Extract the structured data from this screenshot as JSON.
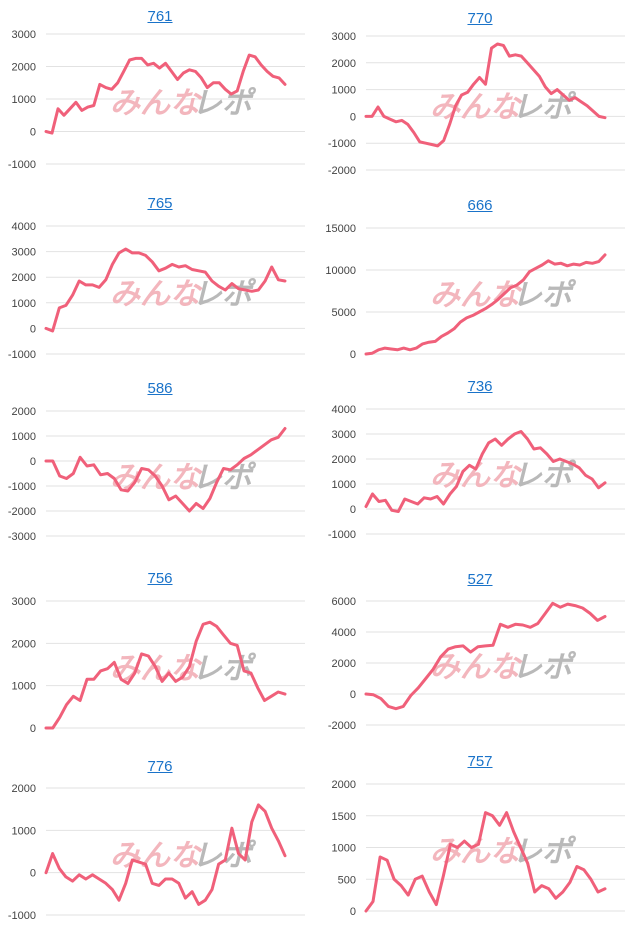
{
  "colors": {
    "line": "#f0607a",
    "title": "#1a73c9",
    "grid": "#e2e2e2",
    "tick": "#444444",
    "watermark_red": "#f3b6bd",
    "watermark_gray": "#b9b9b9"
  },
  "watermark": {
    "left": "みんな",
    "right": "レポ"
  },
  "chart_data": [
    {
      "type": "line",
      "title": "761",
      "yticks": [
        3000,
        2000,
        1000,
        0,
        -1000
      ],
      "ylim": [
        -1000,
        3000
      ],
      "values": [
        0,
        -50,
        700,
        500,
        700,
        900,
        650,
        750,
        800,
        1450,
        1350,
        1300,
        1500,
        1850,
        2200,
        2250,
        2250,
        2050,
        2100,
        1950,
        2100,
        1850,
        1600,
        1800,
        1900,
        1850,
        1650,
        1350,
        1500,
        1500,
        1300,
        1150,
        1250,
        1850,
        2350,
        2300,
        2050,
        1850,
        1700,
        1650,
        1450
      ]
    },
    {
      "type": "line",
      "title": "770",
      "yticks": [
        3000,
        2000,
        1000,
        0,
        -1000,
        -2000
      ],
      "ylim": [
        -2000,
        3000
      ],
      "values": [
        0,
        0,
        350,
        0,
        -100,
        -200,
        -150,
        -300,
        -600,
        -950,
        -1000,
        -1050,
        -1100,
        -900,
        -300,
        400,
        800,
        900,
        1200,
        1450,
        1200,
        2550,
        2700,
        2650,
        2250,
        2300,
        2250,
        2000,
        1750,
        1500,
        1100,
        850,
        1000,
        800,
        600,
        700,
        550,
        400,
        200,
        0,
        -50
      ]
    },
    {
      "type": "line",
      "title": "765",
      "yticks": [
        4000,
        3000,
        2000,
        1000,
        0,
        -1000
      ],
      "ylim": [
        -1000,
        4000
      ],
      "values": [
        0,
        -100,
        800,
        900,
        1300,
        1850,
        1700,
        1700,
        1600,
        1900,
        2500,
        2950,
        3100,
        2950,
        2950,
        2850,
        2600,
        2250,
        2350,
        2500,
        2400,
        2450,
        2300,
        2250,
        2200,
        1850,
        1650,
        1500,
        1750,
        1550,
        1500,
        1450,
        1500,
        1850,
        2400,
        1900,
        1850
      ]
    },
    {
      "type": "line",
      "title": "666",
      "yticks": [
        15000,
        10000,
        5000,
        0
      ],
      "ylim": [
        0,
        15000
      ],
      "values": [
        0,
        100,
        500,
        700,
        600,
        500,
        700,
        500,
        700,
        1200,
        1400,
        1500,
        2100,
        2500,
        3000,
        3800,
        4300,
        4600,
        5000,
        5400,
        5900,
        6500,
        7200,
        7900,
        8200,
        8800,
        9800,
        10200,
        10600,
        11100,
        10700,
        10800,
        10500,
        10700,
        10600,
        10900,
        10800,
        11000,
        11800
      ]
    },
    {
      "type": "line",
      "title": "586",
      "yticks": [
        2000,
        1000,
        0,
        -1000,
        -2000,
        -3000
      ],
      "ylim": [
        -3000,
        2000
      ],
      "values": [
        0,
        0,
        -600,
        -700,
        -500,
        150,
        -200,
        -150,
        -550,
        -500,
        -700,
        -1150,
        -1200,
        -850,
        -300,
        -350,
        -600,
        -1000,
        -1550,
        -1400,
        -1700,
        -2000,
        -1700,
        -1900,
        -1500,
        -850,
        -300,
        -350,
        -150,
        100,
        250,
        450,
        650,
        850,
        950,
        1300
      ]
    },
    {
      "type": "line",
      "title": "736",
      "yticks": [
        4000,
        3000,
        2000,
        1000,
        0,
        -1000
      ],
      "ylim": [
        -1000,
        4000
      ],
      "values": [
        100,
        600,
        300,
        350,
        -50,
        -100,
        400,
        300,
        200,
        450,
        400,
        500,
        200,
        600,
        900,
        1500,
        1750,
        1600,
        2200,
        2650,
        2800,
        2550,
        2800,
        3000,
        3100,
        2800,
        2400,
        2450,
        2200,
        1900,
        2000,
        1900,
        1800,
        1650,
        1350,
        1200,
        850,
        1050
      ]
    },
    {
      "type": "line",
      "title": "756",
      "yticks": [
        3000,
        2000,
        1000,
        0
      ],
      "ylim": [
        0,
        3000
      ],
      "values": [
        0,
        0,
        250,
        550,
        750,
        650,
        1150,
        1150,
        1350,
        1400,
        1550,
        1150,
        1050,
        1300,
        1750,
        1700,
        1450,
        1100,
        1300,
        1100,
        1200,
        1450,
        2050,
        2450,
        2500,
        2400,
        2200,
        2000,
        1950,
        1350,
        1300,
        950,
        650,
        750,
        850,
        800
      ]
    },
    {
      "type": "line",
      "title": "527",
      "yticks": [
        6000,
        4000,
        2000,
        0,
        -2000
      ],
      "ylim": [
        -2000,
        6000
      ],
      "values": [
        0,
        -50,
        -300,
        -800,
        -950,
        -800,
        -100,
        400,
        1000,
        1600,
        2400,
        2900,
        3050,
        3100,
        2700,
        3050,
        3100,
        3150,
        4500,
        4300,
        4500,
        4450,
        4300,
        4550,
        5200,
        5850,
        5600,
        5800,
        5700,
        5550,
        5200,
        4750,
        5000
      ]
    },
    {
      "type": "line",
      "title": "776",
      "yticks": [
        2000,
        1000,
        0,
        -1000
      ],
      "ylim": [
        -1000,
        2000
      ],
      "values": [
        0,
        450,
        100,
        -100,
        -200,
        -50,
        -150,
        -50,
        -150,
        -250,
        -400,
        -650,
        -250,
        300,
        250,
        200,
        -250,
        -300,
        -150,
        -150,
        -250,
        -600,
        -450,
        -750,
        -650,
        -400,
        200,
        300,
        1050,
        450,
        300,
        1200,
        1600,
        1450,
        1050,
        750,
        400
      ]
    },
    {
      "type": "line",
      "title": "757",
      "yticks": [
        2000,
        1500,
        1000,
        500,
        0
      ],
      "ylim": [
        0,
        2000
      ],
      "values": [
        0,
        150,
        850,
        800,
        500,
        400,
        250,
        500,
        550,
        300,
        100,
        550,
        1050,
        1000,
        1100,
        1000,
        1050,
        1550,
        1500,
        1350,
        1550,
        1250,
        1000,
        750,
        300,
        400,
        350,
        200,
        300,
        450,
        700,
        650,
        500,
        300,
        350
      ]
    }
  ]
}
